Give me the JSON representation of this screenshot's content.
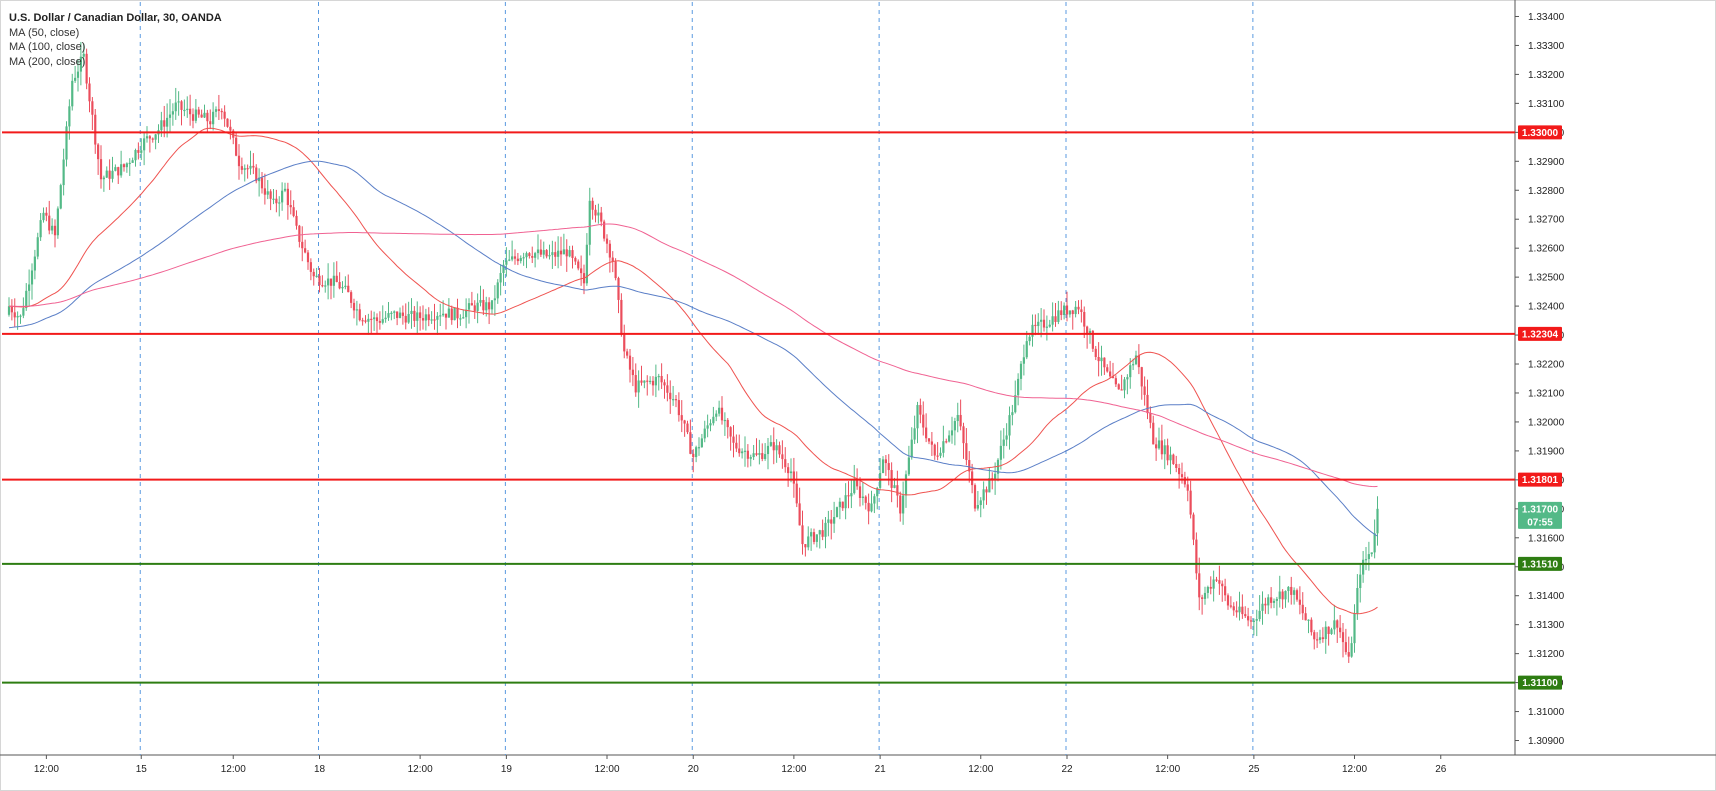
{
  "legend": {
    "title": "U.S. Dollar / Canadian Dollar, 30, OANDA",
    "ma50": "MA (50, close)",
    "ma100": "MA (100, close)",
    "ma200": "MA (200, close)"
  },
  "price_tag": {
    "price": "1.31700",
    "countdown": "07:55"
  },
  "chart_data": {
    "type": "candlestick",
    "title": "U.S. Dollar / Canadian Dollar, 30, OANDA",
    "timeframe": "30",
    "ylim": [
      1.3085,
      1.3345
    ],
    "y_ticks": [
      "1.33400",
      "1.33300",
      "1.33200",
      "1.33100",
      "1.33000",
      "1.32900",
      "1.32800",
      "1.32700",
      "1.32600",
      "1.32500",
      "1.32400",
      "1.32300",
      "1.32200",
      "1.32100",
      "1.32000",
      "1.31900",
      "1.31800",
      "1.31700",
      "1.31600",
      "1.31500",
      "1.31400",
      "1.31300",
      "1.31200",
      "1.31100",
      "1.31000",
      "1.30900"
    ],
    "x_ticks": [
      "12:00",
      "15",
      "12:00",
      "18",
      "12:00",
      "19",
      "12:00",
      "20",
      "12:00",
      "21",
      "12:00",
      "22",
      "12:00",
      "25",
      "12:00",
      "26"
    ],
    "day_separators": [
      "15",
      "18",
      "19",
      "20",
      "21",
      "22",
      "25"
    ],
    "grid": false,
    "legend_position": "top-left",
    "horizontal_levels": [
      {
        "price": 1.33,
        "label": "1.33000",
        "color": "#f21a1a"
      },
      {
        "price": 1.32304,
        "label": "1.32304",
        "color": "#f21a1a"
      },
      {
        "price": 1.31801,
        "label": "1.31801",
        "color": "#f21a1a"
      },
      {
        "price": 1.3151,
        "label": "1.31510",
        "color": "#2e7d12"
      },
      {
        "price": 1.311,
        "label": "1.31100",
        "color": "#2e7d12"
      }
    ],
    "colors": {
      "up": "#53b987",
      "down": "#eb4d5c",
      "ma50": "#ef5350",
      "ma100": "#5b7fc7",
      "ma200": "#f06292",
      "separator": "#5a9ae0"
    },
    "path_anchors": [
      [
        0,
        1.324
      ],
      [
        4,
        1.3236
      ],
      [
        12,
        1.3272
      ],
      [
        16,
        1.3264
      ],
      [
        22,
        1.3318
      ],
      [
        26,
        1.3326
      ],
      [
        32,
        1.3284
      ],
      [
        40,
        1.3288
      ],
      [
        46,
        1.3296
      ],
      [
        52,
        1.3301
      ],
      [
        58,
        1.3309
      ],
      [
        64,
        1.3306
      ],
      [
        70,
        1.3304
      ],
      [
        74,
        1.3309
      ],
      [
        80,
        1.329
      ],
      [
        86,
        1.3285
      ],
      [
        92,
        1.3275
      ],
      [
        96,
        1.328
      ],
      [
        100,
        1.3266
      ],
      [
        106,
        1.325
      ],
      [
        114,
        1.3248
      ],
      [
        118,
        1.3244
      ],
      [
        122,
        1.3237
      ],
      [
        128,
        1.3235
      ],
      [
        134,
        1.3237
      ],
      [
        142,
        1.3236
      ],
      [
        150,
        1.3238
      ],
      [
        156,
        1.3237
      ],
      [
        162,
        1.324
      ],
      [
        168,
        1.324
      ],
      [
        172,
        1.3254
      ],
      [
        180,
        1.3259
      ],
      [
        188,
        1.3257
      ],
      [
        194,
        1.3259
      ],
      [
        200,
        1.3248
      ],
      [
        202,
        1.3278
      ],
      [
        206,
        1.3268
      ],
      [
        210,
        1.3256
      ],
      [
        214,
        1.3224
      ],
      [
        218,
        1.3212
      ],
      [
        226,
        1.3215
      ],
      [
        232,
        1.3207
      ],
      [
        238,
        1.3188
      ],
      [
        246,
        1.3205
      ],
      [
        252,
        1.3192
      ],
      [
        260,
        1.3188
      ],
      [
        266,
        1.3192
      ],
      [
        272,
        1.3183
      ],
      [
        276,
        1.3158
      ],
      [
        284,
        1.3163
      ],
      [
        290,
        1.3172
      ],
      [
        294,
        1.3178
      ],
      [
        300,
        1.317
      ],
      [
        304,
        1.3188
      ],
      [
        310,
        1.317
      ],
      [
        316,
        1.3204
      ],
      [
        322,
        1.3188
      ],
      [
        330,
        1.3202
      ],
      [
        336,
        1.3172
      ],
      [
        342,
        1.318
      ],
      [
        350,
        1.3208
      ],
      [
        354,
        1.323
      ],
      [
        360,
        1.3234
      ],
      [
        366,
        1.3238
      ],
      [
        372,
        1.324
      ],
      [
        378,
        1.3224
      ],
      [
        382,
        1.3216
      ],
      [
        386,
        1.321
      ],
      [
        392,
        1.3223
      ],
      [
        398,
        1.3194
      ],
      [
        404,
        1.3188
      ],
      [
        410,
        1.3178
      ],
      [
        414,
        1.3138
      ],
      [
        420,
        1.3147
      ],
      [
        424,
        1.3137
      ],
      [
        432,
        1.3131
      ],
      [
        438,
        1.3139
      ],
      [
        446,
        1.3142
      ],
      [
        450,
        1.3134
      ],
      [
        454,
        1.3125
      ],
      [
        462,
        1.3131
      ],
      [
        466,
        1.3117
      ],
      [
        470,
        1.3149
      ],
      [
        474,
        1.3156
      ],
      [
        476,
        1.317
      ]
    ]
  }
}
